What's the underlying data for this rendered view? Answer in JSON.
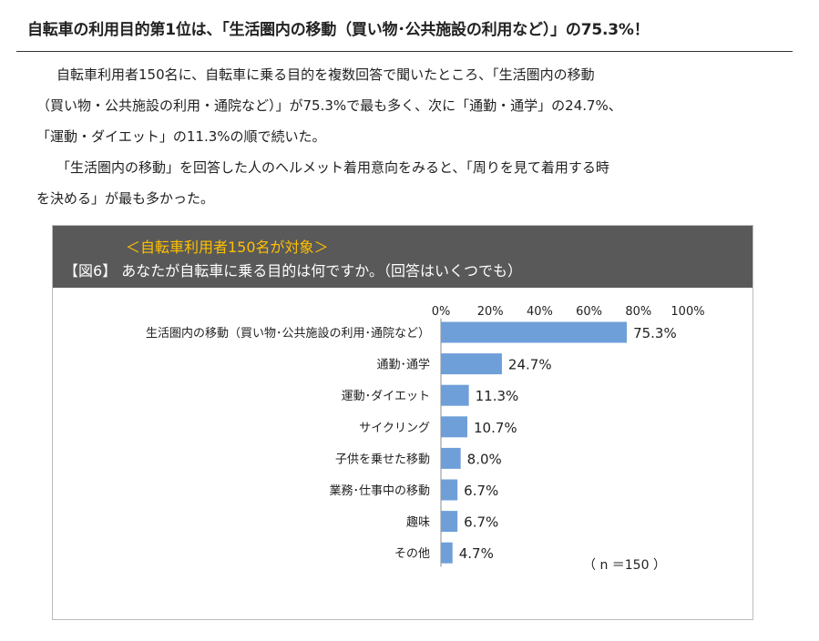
{
  "headline": "自転車の利用目的第1位は、「生活圏内の移動（買い物･公共施設の利用など）」の75.3%！",
  "paragraphs": [
    "自転車利用者150名に、自転車に乗る目的を複数回答で聞いたところ、「生活圏内の移動",
    "（買い物・公共施設の利用・通院など）」が75.3%で最も多く、次に「通勤・通学」の24.7%、",
    "「運動・ダイエット」の11.3%の順で続いた。",
    "「生活圏内の移動」を回答した人のヘルメット着用意向をみると、「周りを見て着用する時",
    "を決める」が最も多かった。"
  ],
  "panel": {
    "subtitle": "＜自転車利用者150名が対象＞",
    "title": "【図6】 あなたが自転車に乗る目的は何ですか。（回答はいくつでも）",
    "n_label": "（ n ＝150 ）"
  },
  "chart_data": {
    "type": "bar",
    "orientation": "horizontal",
    "categories": [
      "生活圏内の移動（買い物･公共施設の利用･通院など）",
      "通勤･通学",
      "運動･ダイエット",
      "サイクリング",
      "子供を乗せた移動",
      "業務･仕事中の移動",
      "趣味",
      "その他"
    ],
    "values": [
      75.3,
      24.7,
      11.3,
      10.7,
      8.0,
      6.7,
      6.7,
      4.7
    ],
    "value_labels": [
      "75.3%",
      "24.7%",
      "11.3%",
      "10.7%",
      "8.0%",
      "6.7%",
      "6.7%",
      "4.7%"
    ],
    "ticks": [
      "0%",
      "20%",
      "40%",
      "60%",
      "80%",
      "100%"
    ],
    "xlim": [
      0,
      100
    ],
    "grid": false,
    "bar_color": "#6f9fd8",
    "axis_color": "#8c8c8c"
  },
  "colors": {
    "header_bg": "#595959",
    "subtitle": "#ffc000",
    "title": "#ffffff",
    "bar": "#6f9fd8"
  }
}
